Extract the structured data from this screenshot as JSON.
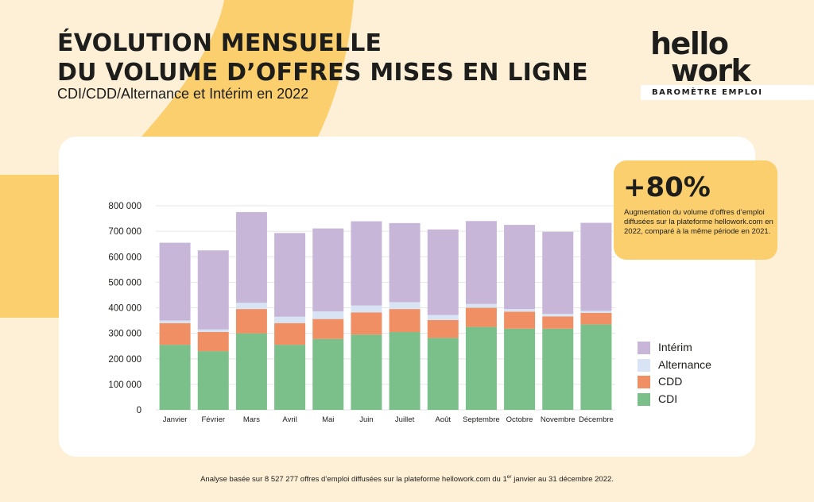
{
  "header": {
    "title_line1": "ÉVOLUTION MENSUELLE",
    "title_line2": "DU VOLUME D’OFFRES MISES EN LIGNE",
    "subtitle": "CDI/CDD/Alternance et Intérim en 2022"
  },
  "brand": {
    "logo_line1": "hello",
    "logo_line2": "work",
    "tagline": "BAROMÈTRE EMPLOI"
  },
  "callout": {
    "value": "+80%",
    "text": "Augmentation du volume d’offres d’emploi diffusées sur la plateforme hellowork.com en 2022, comparé à la même période en 2021."
  },
  "footnote": {
    "before": "Analyse basée sur 8 527 277 offres d’emploi diffusées sur la plateforme hellowork.com du 1",
    "sup": "er",
    "after": " janvier au 31 décembre 2022."
  },
  "colors": {
    "background": "#fdf0d6",
    "accent_yellow": "#fbcf6d",
    "card": "#ffffff"
  },
  "chart_data": {
    "type": "bar",
    "stacked": true,
    "categories": [
      "Janvier",
      "Février",
      "Mars",
      "Avril",
      "Mai",
      "Juin",
      "Juillet",
      "Août",
      "Septembre",
      "Octobre",
      "Novembre",
      "Décembre"
    ],
    "series": [
      {
        "name": "CDI",
        "color": "#7bbf8b",
        "values": [
          255000,
          230000,
          300000,
          255000,
          278000,
          295000,
          305000,
          282000,
          325000,
          318000,
          318000,
          335000
        ]
      },
      {
        "name": "CDD",
        "color": "#ef8f63",
        "values": [
          85000,
          75000,
          95000,
          85000,
          78000,
          87000,
          90000,
          70000,
          75000,
          67000,
          48000,
          45000
        ]
      },
      {
        "name": "Alternance",
        "color": "#d8e4f4",
        "values": [
          10000,
          10000,
          25000,
          25000,
          30000,
          27000,
          27000,
          20000,
          15000,
          10000,
          10000,
          8000
        ]
      },
      {
        "name": "Intérim",
        "color": "#c8b6d9",
        "values": [
          305000,
          310000,
          355000,
          328000,
          325000,
          330000,
          310000,
          335000,
          325000,
          330000,
          322000,
          345000
        ]
      }
    ],
    "yticks": [
      0,
      100000,
      200000,
      300000,
      400000,
      500000,
      600000,
      700000,
      800000
    ],
    "ytick_labels": [
      "0",
      "100 000",
      "200 000",
      "300 000",
      "400 000",
      "500 000",
      "600 000",
      "700 000",
      "800 000"
    ],
    "ylim": [
      0,
      800000
    ],
    "grid": true,
    "legend_position": "right",
    "legend_order": [
      "Intérim",
      "Alternance",
      "CDD",
      "CDI"
    ]
  }
}
